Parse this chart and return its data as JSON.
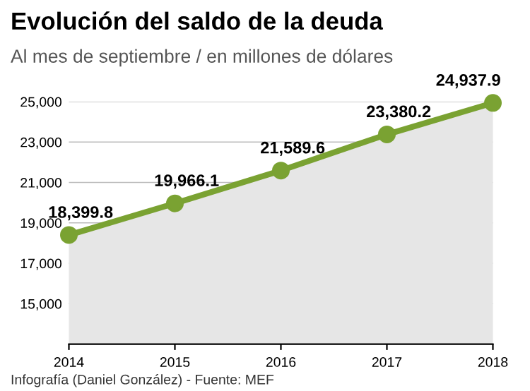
{
  "chart_data": {
    "type": "area",
    "title": "Evolución del saldo de la deuda",
    "subtitle": "Al mes de septiembre / en millones de dólares",
    "x": [
      2014,
      2015,
      2016,
      2017,
      2018
    ],
    "series": [
      {
        "color": "#7aa232",
        "values": [
          18399.8,
          19966.1,
          21589.6,
          23380.2,
          24937.9
        ],
        "value_labels": [
          "18,399.8",
          "19,966.1",
          "21,589.6",
          "23,380.2",
          "24,937.9"
        ]
      }
    ],
    "xlim": [
      2014,
      2018
    ],
    "xticks": [
      2014,
      2015,
      2016,
      2017,
      2018
    ],
    "ylim": [
      13000,
      25000
    ],
    "yticks": [
      {
        "value": 15000,
        "label": "15,000"
      },
      {
        "value": 17000,
        "label": "17,000"
      },
      {
        "value": 19000,
        "label": "19,000"
      },
      {
        "value": 21000,
        "label": "21,000"
      },
      {
        "value": 23000,
        "label": "23,000"
      },
      {
        "value": 25000,
        "label": "25,000"
      }
    ],
    "grid": "y",
    "marker": "circle",
    "line_style": "solid",
    "legend": false,
    "annotations": [
      "Infografía (Daniel González) - Fuente: MEF"
    ]
  }
}
